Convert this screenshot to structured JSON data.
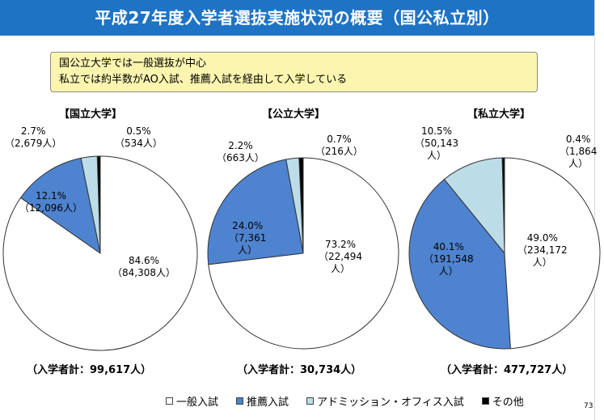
{
  "title": "平成27年度入学者選抜実施状況の概要（国公私立別）",
  "summary": {
    "line1": "国公立大学では一般選抜が中心",
    "line2": "私立では約半数がAO入試、推薦入試を経由して入学している"
  },
  "colors": {
    "general": "#ffffff",
    "recommendation": "#4e83cf",
    "admission_office": "#bcdde8",
    "other": "#000000",
    "title_bar": "#1f73c4"
  },
  "legend": {
    "general": "一般入試",
    "recommendation": "推薦入試",
    "admission_office": "アドミッション・オフィス入試",
    "other": "その他"
  },
  "page_number": "73",
  "chart_data": [
    {
      "type": "pie",
      "title": "【国立大学】",
      "total": "（入学者計：99,617人）",
      "categories": [
        "一般入試",
        "推薦入試",
        "アドミッション・オフィス入試",
        "その他"
      ],
      "values": [
        84.6,
        12.1,
        2.7,
        0.5
      ],
      "labels": [
        {
          "pct": "84.6%",
          "count": "（84,308人）"
        },
        {
          "pct": "12.1%",
          "count": "（12,096人）"
        },
        {
          "pct": "2.7%",
          "count": "（2,679人）"
        },
        {
          "pct": "0.5%",
          "count": "（534人）"
        }
      ]
    },
    {
      "type": "pie",
      "title": "【公立大学】",
      "total": "（入学者計：30,734人）",
      "categories": [
        "一般入試",
        "推薦入試",
        "アドミッション・オフィス入試",
        "その他"
      ],
      "values": [
        73.2,
        24.0,
        2.2,
        0.7
      ],
      "labels": [
        {
          "pct": "73.2%",
          "count": "（22,494",
          "count2": "人）"
        },
        {
          "pct": "24.0%",
          "count": "（7,361",
          "count2": "人）"
        },
        {
          "pct": "2.2%",
          "count": "（663人）"
        },
        {
          "pct": "0.7%",
          "count": "（216人）"
        }
      ]
    },
    {
      "type": "pie",
      "title": "【私立大学】",
      "total": "（入学者計：477,727人）",
      "categories": [
        "一般入試",
        "推薦入試",
        "アドミッション・オフィス入試",
        "その他"
      ],
      "values": [
        49.0,
        40.1,
        10.5,
        0.4
      ],
      "labels": [
        {
          "pct": "49.0%",
          "count": "（234,172",
          "count2": "人）"
        },
        {
          "pct": "40.1%",
          "count": "（191,548",
          "count2": "人）"
        },
        {
          "pct": "10.5%",
          "count": "（50,143",
          "count2": "人）"
        },
        {
          "pct": "0.4%",
          "count": "（1,864",
          "count2": "人）"
        }
      ]
    }
  ]
}
